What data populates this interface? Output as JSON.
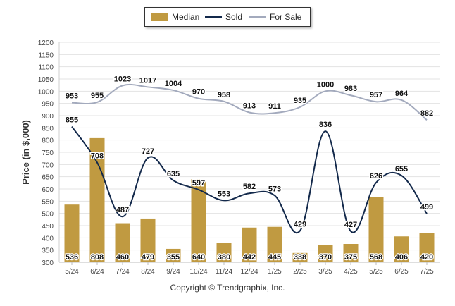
{
  "copyright": "Copyright © Trendgraphix, Inc.",
  "colors": {
    "median": "#c09a41",
    "sold": "#13294b",
    "for_sale": "#a3aabd",
    "grid": "#e3e3e3"
  },
  "chart_data": {
    "type": "bar+line",
    "ylabel": "Price (in $,000)",
    "ylim": [
      300,
      1200
    ],
    "yticks": [
      300,
      350,
      400,
      450,
      500,
      550,
      600,
      650,
      700,
      750,
      800,
      850,
      900,
      950,
      1000,
      1050,
      1100,
      1150,
      1200
    ],
    "categories": [
      "5/24",
      "6/24",
      "7/24",
      "8/24",
      "9/24",
      "10/24",
      "11/24",
      "12/24",
      "1/25",
      "2/25",
      "3/25",
      "4/25",
      "5/25",
      "6/25",
      "7/25"
    ],
    "legend": [
      "Median",
      "Sold",
      "For Sale"
    ],
    "series": [
      {
        "name": "Median",
        "type": "bar",
        "values": [
          536,
          808,
          460,
          479,
          355,
          640,
          380,
          442,
          445,
          338,
          370,
          375,
          568,
          406,
          420
        ]
      },
      {
        "name": "Sold",
        "type": "line",
        "values": [
          855,
          708,
          487,
          727,
          635,
          597,
          553,
          582,
          573,
          429,
          836,
          427,
          626,
          655,
          499
        ]
      },
      {
        "name": "For Sale",
        "type": "line",
        "values": [
          953,
          955,
          1023,
          1017,
          1004,
          970,
          958,
          913,
          911,
          935,
          1000,
          983,
          957,
          964,
          882
        ]
      }
    ]
  }
}
